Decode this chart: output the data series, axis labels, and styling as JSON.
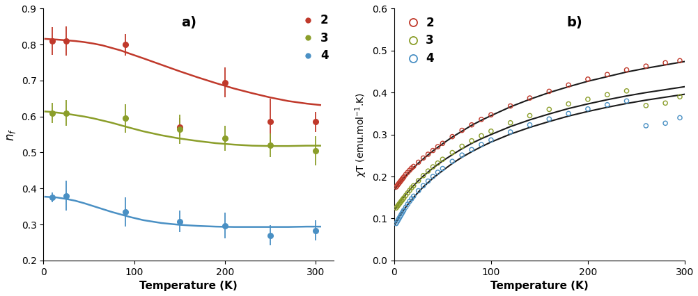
{
  "panel_a": {
    "title": "a)",
    "xlabel": "Temperature (K)",
    "ylabel": "n$_f$",
    "xlim": [
      0,
      320
    ],
    "ylim": [
      0.2,
      0.9
    ],
    "yticks": [
      0.2,
      0.3,
      0.4,
      0.5,
      0.6,
      0.7,
      0.8,
      0.9
    ],
    "xticks": [
      0,
      100,
      200,
      300
    ],
    "series": [
      {
        "label": "2",
        "color": "#c0392b",
        "marker_color": "#c0392b",
        "x_data": [
          10,
          25,
          90,
          150,
          200,
          250,
          300
        ],
        "y_data": [
          0.81,
          0.81,
          0.8,
          0.57,
          0.695,
          0.585,
          0.585
        ],
        "y_err": [
          0.038,
          0.04,
          0.03,
          0.025,
          0.042,
          0.065,
          0.028
        ],
        "fit_x": [
          2,
          8,
          15,
          25,
          35,
          45,
          55,
          65,
          75,
          85,
          95,
          110,
          130,
          150,
          170,
          190,
          210,
          230,
          250,
          270,
          290,
          305
        ],
        "fit_y": [
          0.816,
          0.815,
          0.814,
          0.812,
          0.81,
          0.807,
          0.803,
          0.798,
          0.791,
          0.784,
          0.775,
          0.762,
          0.744,
          0.726,
          0.709,
          0.693,
          0.678,
          0.665,
          0.653,
          0.643,
          0.636,
          0.632
        ]
      },
      {
        "label": "3",
        "color": "#8b9e2a",
        "marker_color": "#8b9e2a",
        "x_data": [
          10,
          25,
          90,
          150,
          200,
          250,
          300
        ],
        "y_data": [
          0.61,
          0.61,
          0.595,
          0.565,
          0.54,
          0.52,
          0.505
        ],
        "y_err": [
          0.028,
          0.035,
          0.04,
          0.04,
          0.035,
          0.033,
          0.04
        ],
        "fit_x": [
          2,
          8,
          15,
          25,
          35,
          45,
          55,
          65,
          75,
          85,
          95,
          110,
          130,
          150,
          170,
          190,
          210,
          230,
          250,
          270,
          290,
          305
        ],
        "fit_y": [
          0.614,
          0.613,
          0.611,
          0.608,
          0.604,
          0.6,
          0.595,
          0.589,
          0.583,
          0.576,
          0.569,
          0.559,
          0.548,
          0.539,
          0.532,
          0.526,
          0.522,
          0.519,
          0.518,
          0.518,
          0.519,
          0.519
        ]
      },
      {
        "label": "4",
        "color": "#4a90c4",
        "marker_color": "#4a90c4",
        "x_data": [
          10,
          25,
          90,
          150,
          200,
          250,
          300
        ],
        "y_data": [
          0.375,
          0.38,
          0.335,
          0.308,
          0.297,
          0.27,
          0.283
        ],
        "y_err": [
          0.013,
          0.042,
          0.04,
          0.03,
          0.035,
          0.028,
          0.028
        ],
        "fit_x": [
          2,
          8,
          15,
          25,
          35,
          45,
          55,
          65,
          75,
          85,
          95,
          110,
          130,
          150,
          170,
          190,
          210,
          230,
          250,
          270,
          290,
          305
        ],
        "fit_y": [
          0.377,
          0.376,
          0.375,
          0.371,
          0.366,
          0.359,
          0.351,
          0.343,
          0.335,
          0.328,
          0.321,
          0.312,
          0.304,
          0.299,
          0.296,
          0.294,
          0.293,
          0.293,
          0.293,
          0.293,
          0.294,
          0.294
        ]
      }
    ]
  },
  "panel_b": {
    "title": "b)",
    "xlabel": "Temperature (K)",
    "ylabel": "$\\chi$T (emu.mol$^{-1}$.K)",
    "xlim": [
      0,
      300
    ],
    "ylim": [
      0,
      0.6
    ],
    "yticks": [
      0,
      0.1,
      0.2,
      0.3,
      0.4,
      0.5,
      0.6
    ],
    "xticks": [
      0,
      100,
      200,
      300
    ],
    "series": [
      {
        "label": "2",
        "color": "#c0392b",
        "fit_color": "#1a1a1a",
        "x_scatter": [
          2,
          3,
          4,
          5,
          6,
          7,
          8,
          9,
          10,
          12,
          14,
          16,
          18,
          20,
          25,
          30,
          35,
          40,
          45,
          50,
          60,
          70,
          80,
          90,
          100,
          120,
          140,
          160,
          180,
          200,
          220,
          240,
          260,
          280,
          295
        ],
        "y_scatter": [
          0.175,
          0.178,
          0.181,
          0.184,
          0.187,
          0.19,
          0.193,
          0.196,
          0.199,
          0.205,
          0.21,
          0.215,
          0.22,
          0.224,
          0.234,
          0.244,
          0.253,
          0.262,
          0.271,
          0.279,
          0.295,
          0.31,
          0.323,
          0.336,
          0.347,
          0.368,
          0.387,
          0.403,
          0.418,
          0.432,
          0.443,
          0.454,
          0.463,
          0.471,
          0.476
        ],
        "fit_x": [
          1,
          3,
          5,
          8,
          12,
          16,
          20,
          25,
          30,
          40,
          50,
          60,
          70,
          80,
          90,
          100,
          120,
          140,
          160,
          180,
          200,
          220,
          240,
          260,
          280,
          300
        ],
        "fit_y": [
          0.17,
          0.178,
          0.184,
          0.192,
          0.202,
          0.212,
          0.221,
          0.232,
          0.242,
          0.261,
          0.278,
          0.294,
          0.308,
          0.322,
          0.334,
          0.345,
          0.366,
          0.384,
          0.4,
          0.414,
          0.427,
          0.438,
          0.449,
          0.458,
          0.466,
          0.474
        ]
      },
      {
        "label": "3",
        "color": "#8b9e2a",
        "fit_color": "#1a1a1a",
        "x_scatter": [
          2,
          3,
          4,
          5,
          6,
          7,
          8,
          9,
          10,
          12,
          14,
          16,
          18,
          20,
          25,
          30,
          35,
          40,
          45,
          50,
          60,
          70,
          80,
          90,
          100,
          120,
          140,
          160,
          180,
          200,
          220,
          240,
          260,
          280,
          295
        ],
        "y_scatter": [
          0.125,
          0.128,
          0.131,
          0.134,
          0.137,
          0.14,
          0.143,
          0.146,
          0.149,
          0.155,
          0.161,
          0.167,
          0.173,
          0.178,
          0.19,
          0.202,
          0.213,
          0.223,
          0.232,
          0.241,
          0.257,
          0.272,
          0.285,
          0.297,
          0.308,
          0.328,
          0.345,
          0.36,
          0.373,
          0.384,
          0.395,
          0.404,
          0.369,
          0.375,
          0.39
        ],
        "fit_x": [
          1,
          3,
          5,
          8,
          12,
          16,
          20,
          25,
          30,
          40,
          50,
          60,
          70,
          80,
          90,
          100,
          120,
          140,
          160,
          180,
          200,
          220,
          240,
          260,
          280,
          300
        ],
        "fit_y": [
          0.122,
          0.13,
          0.137,
          0.146,
          0.157,
          0.168,
          0.178,
          0.19,
          0.201,
          0.22,
          0.237,
          0.252,
          0.266,
          0.279,
          0.29,
          0.3,
          0.319,
          0.335,
          0.349,
          0.362,
          0.373,
          0.383,
          0.392,
          0.4,
          0.407,
          0.414
        ]
      },
      {
        "label": "4",
        "color": "#4a90c4",
        "fit_color": "#1a1a1a",
        "x_scatter": [
          2,
          3,
          4,
          5,
          6,
          7,
          8,
          9,
          10,
          12,
          14,
          16,
          18,
          20,
          25,
          30,
          35,
          40,
          45,
          50,
          60,
          70,
          80,
          90,
          100,
          120,
          140,
          160,
          180,
          200,
          220,
          240,
          260,
          280,
          295
        ],
        "y_scatter": [
          0.088,
          0.092,
          0.096,
          0.1,
          0.104,
          0.108,
          0.112,
          0.116,
          0.12,
          0.127,
          0.134,
          0.141,
          0.147,
          0.153,
          0.166,
          0.178,
          0.189,
          0.2,
          0.21,
          0.219,
          0.236,
          0.251,
          0.264,
          0.276,
          0.287,
          0.306,
          0.323,
          0.337,
          0.35,
          0.361,
          0.371,
          0.38,
          0.321,
          0.327,
          0.34
        ],
        "fit_x": [
          1,
          3,
          5,
          8,
          12,
          16,
          20,
          25,
          30,
          40,
          50,
          60,
          70,
          80,
          90,
          100,
          120,
          140,
          160,
          180,
          200,
          220,
          240,
          260,
          280,
          300
        ],
        "fit_y": [
          0.086,
          0.095,
          0.103,
          0.114,
          0.127,
          0.139,
          0.15,
          0.163,
          0.175,
          0.196,
          0.214,
          0.231,
          0.246,
          0.259,
          0.271,
          0.282,
          0.301,
          0.317,
          0.331,
          0.344,
          0.355,
          0.365,
          0.374,
          0.382,
          0.389,
          0.396
        ]
      }
    ]
  },
  "fig_width": 10.03,
  "fig_height": 4.26,
  "background_color": "#ffffff"
}
